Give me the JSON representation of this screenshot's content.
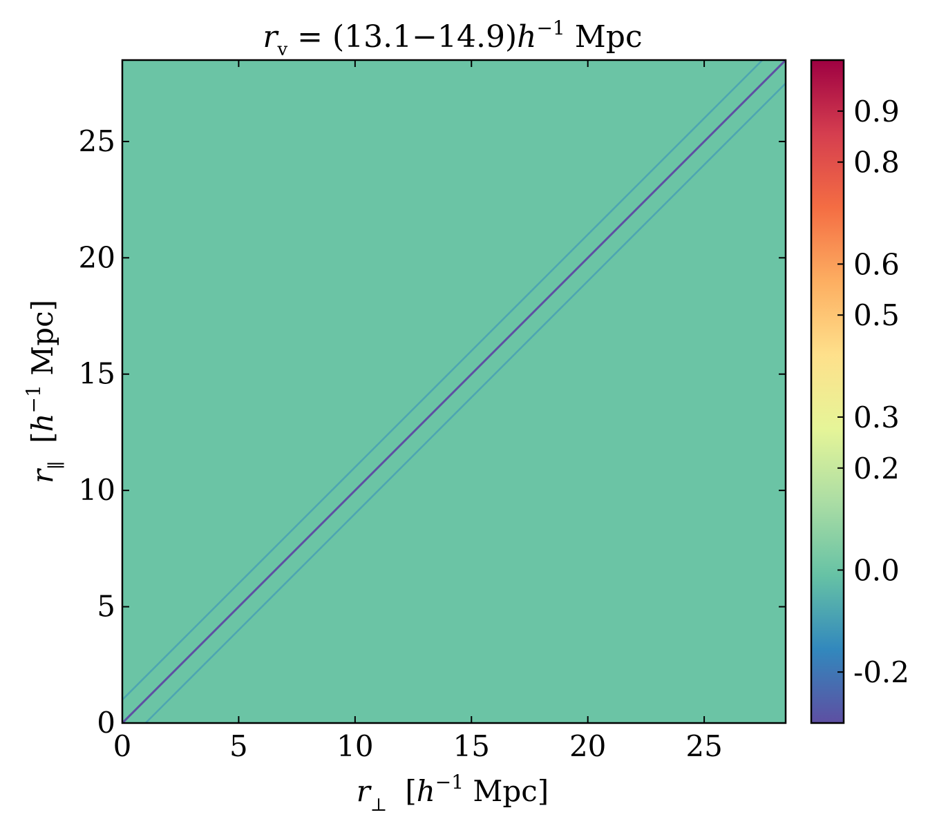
{
  "chart_data": {
    "type": "heatmap",
    "title": {
      "main": "r",
      "sub": "v",
      "mid": " = (13.1−14.9)",
      "h": "h",
      "exp": "−1",
      "unit": " Mpc"
    },
    "xlabel": {
      "var": "r",
      "sub": "⊥",
      "open": "[",
      "h": "h",
      "exp": "−1",
      "unit": " Mpc]"
    },
    "ylabel": {
      "var": "r",
      "sub": "∥",
      "open": "[",
      "h": "h",
      "exp": "−1",
      "unit": " Mpc]"
    },
    "xlim": [
      0,
      28.5
    ],
    "ylim": [
      0,
      28.5
    ],
    "xticks": [
      0,
      5,
      10,
      15,
      20,
      25
    ],
    "yticks": [
      0,
      5,
      10,
      15,
      20,
      25
    ],
    "xtick_labels": [
      "0",
      "5",
      "10",
      "15",
      "20",
      "25"
    ],
    "ytick_labels": [
      "0",
      "5",
      "10",
      "15",
      "20",
      "25"
    ],
    "background_value": 0.0,
    "diagonal": {
      "main_value": -0.3,
      "offset_lines": [
        {
          "offset": 1.0,
          "value": -0.1
        },
        {
          "offset": -1.0,
          "value": -0.1
        }
      ]
    },
    "colorbar": {
      "vmin": -0.3,
      "vmax": 1.0,
      "ticks": [
        -0.2,
        0.0,
        0.2,
        0.3,
        0.5,
        0.6,
        0.8,
        0.9
      ],
      "tick_labels": [
        "-0.2",
        "0.0",
        "0.2",
        "0.3",
        "0.5",
        "0.6",
        "0.8",
        "0.9"
      ],
      "colormap": "Spectral_r",
      "color_stops": [
        "#5e4fa2",
        "#3288bd",
        "#66c2a5",
        "#abdda4",
        "#e6f598",
        "#fee08b",
        "#fdae61",
        "#f46d43",
        "#d53e4f",
        "#9e0142"
      ]
    },
    "grid": false
  }
}
